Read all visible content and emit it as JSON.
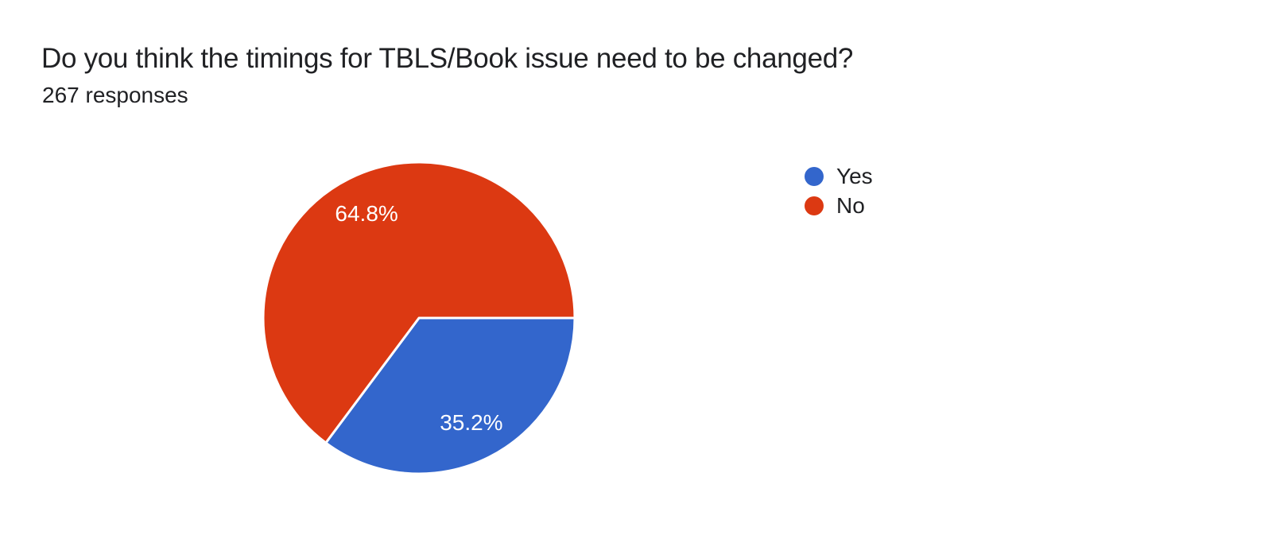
{
  "chart_data": {
    "type": "pie",
    "title": "Do you think the timings for TBLS/Book issue need to be changed?",
    "subtitle": "267 responses",
    "responses_count": 267,
    "labels": [
      "Yes",
      "No"
    ],
    "values": [
      35.2,
      64.8
    ],
    "unit": "%",
    "colors": [
      "#3366CC",
      "#DC3912"
    ],
    "slice_border_color": "#ffffff",
    "label_text_color": "#ffffff",
    "legend_position": "right",
    "start_angle_deg": 0,
    "direction": "clockwise"
  },
  "text_color": "#202124",
  "background_color": "#ffffff"
}
